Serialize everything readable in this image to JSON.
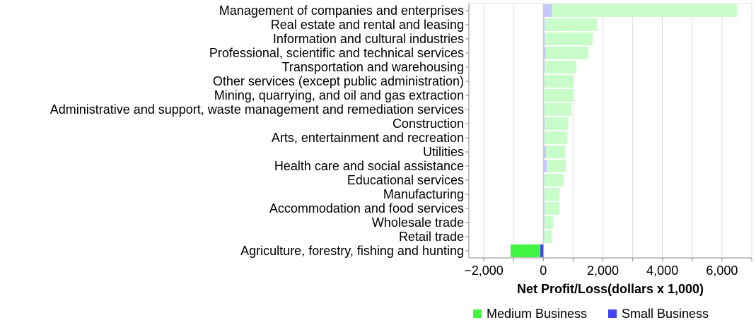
{
  "chart_data": {
    "type": "bar",
    "orientation": "horizontal",
    "stacked": true,
    "xlabel": "Net Profit/Loss(dollars x 1,000)",
    "xlim": [
      -2500,
      7000
    ],
    "xticks": [
      -2000,
      0,
      2000,
      4000,
      6000
    ],
    "xtick_labels": [
      "−2,000",
      "0",
      "2,000",
      "4,000",
      "6,000"
    ],
    "grid": true,
    "legend_position": "bottom",
    "categories": [
      "Management of companies and enterprises",
      "Real estate and rental and leasing",
      "Information and cultural industries",
      "Professional, scientific and technical services",
      "Transportation and warehousing",
      "Other services (except public administration)",
      "Mining, quarrying, and oil and gas extraction",
      "Administrative and support, waste management and remediation services",
      "Construction",
      "Arts, entertainment and recreation",
      "Utilities",
      "Health care and social assistance",
      "Educational services",
      "Manufacturing",
      "Accommodation and food services",
      "Wholesale trade",
      "Retail trade",
      "Agriculture, forestry, fishing and hunting"
    ],
    "series": [
      {
        "name": "Medium Business",
        "color": "#42f542",
        "faded_color": "#c8fcc8",
        "values": [
          6220,
          1750,
          1610,
          1440,
          1060,
          970,
          980,
          900,
          800,
          780,
          640,
          640,
          660,
          520,
          500,
          300,
          260,
          -1000
        ]
      },
      {
        "name": "Small Business",
        "color": "#4242f5",
        "faded_color": "#c8c8fc",
        "values": [
          280,
          50,
          50,
          80,
          40,
          30,
          20,
          30,
          40,
          30,
          90,
          120,
          30,
          30,
          40,
          30,
          30,
          -100
        ]
      }
    ],
    "highlighted_category": "Agriculture, forestry, fishing and hunting"
  }
}
